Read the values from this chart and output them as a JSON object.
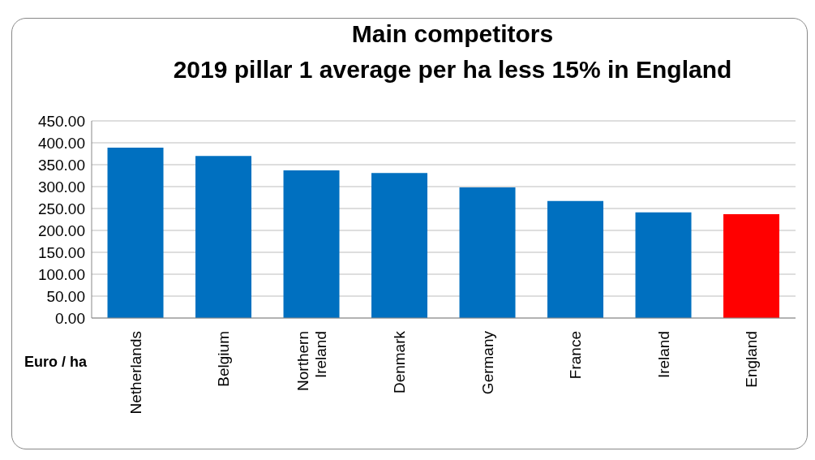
{
  "chart_data": {
    "type": "bar",
    "title": "Main competitors",
    "subtitle": "2019 pillar 1 average per ha less 15% in England",
    "ylabel": "Euro / ha",
    "categories": [
      "Netherlands",
      "Belgium",
      "Northern Ireland",
      "Denmark",
      "Germany",
      "France",
      "Ireland",
      "England"
    ],
    "values": [
      389,
      370,
      337,
      331,
      298,
      267,
      241,
      237
    ],
    "colors": [
      "#0070c0",
      "#0070c0",
      "#0070c0",
      "#0070c0",
      "#0070c0",
      "#0070c0",
      "#0070c0",
      "#ff0000"
    ],
    "ylim": [
      0,
      450
    ],
    "yticks": [
      {
        "value": 0,
        "label": "0.00"
      },
      {
        "value": 50,
        "label": "50.00"
      },
      {
        "value": 100,
        "label": "100.00"
      },
      {
        "value": 150,
        "label": "150.00"
      },
      {
        "value": 200,
        "label": "200.00"
      },
      {
        "value": 250,
        "label": "250.00"
      },
      {
        "value": 300,
        "label": "300.00"
      },
      {
        "value": 350,
        "label": "350.00"
      },
      {
        "value": 400,
        "label": "400.00"
      },
      {
        "value": 450,
        "label": "450.00"
      }
    ],
    "grid": "y",
    "legend": false
  }
}
